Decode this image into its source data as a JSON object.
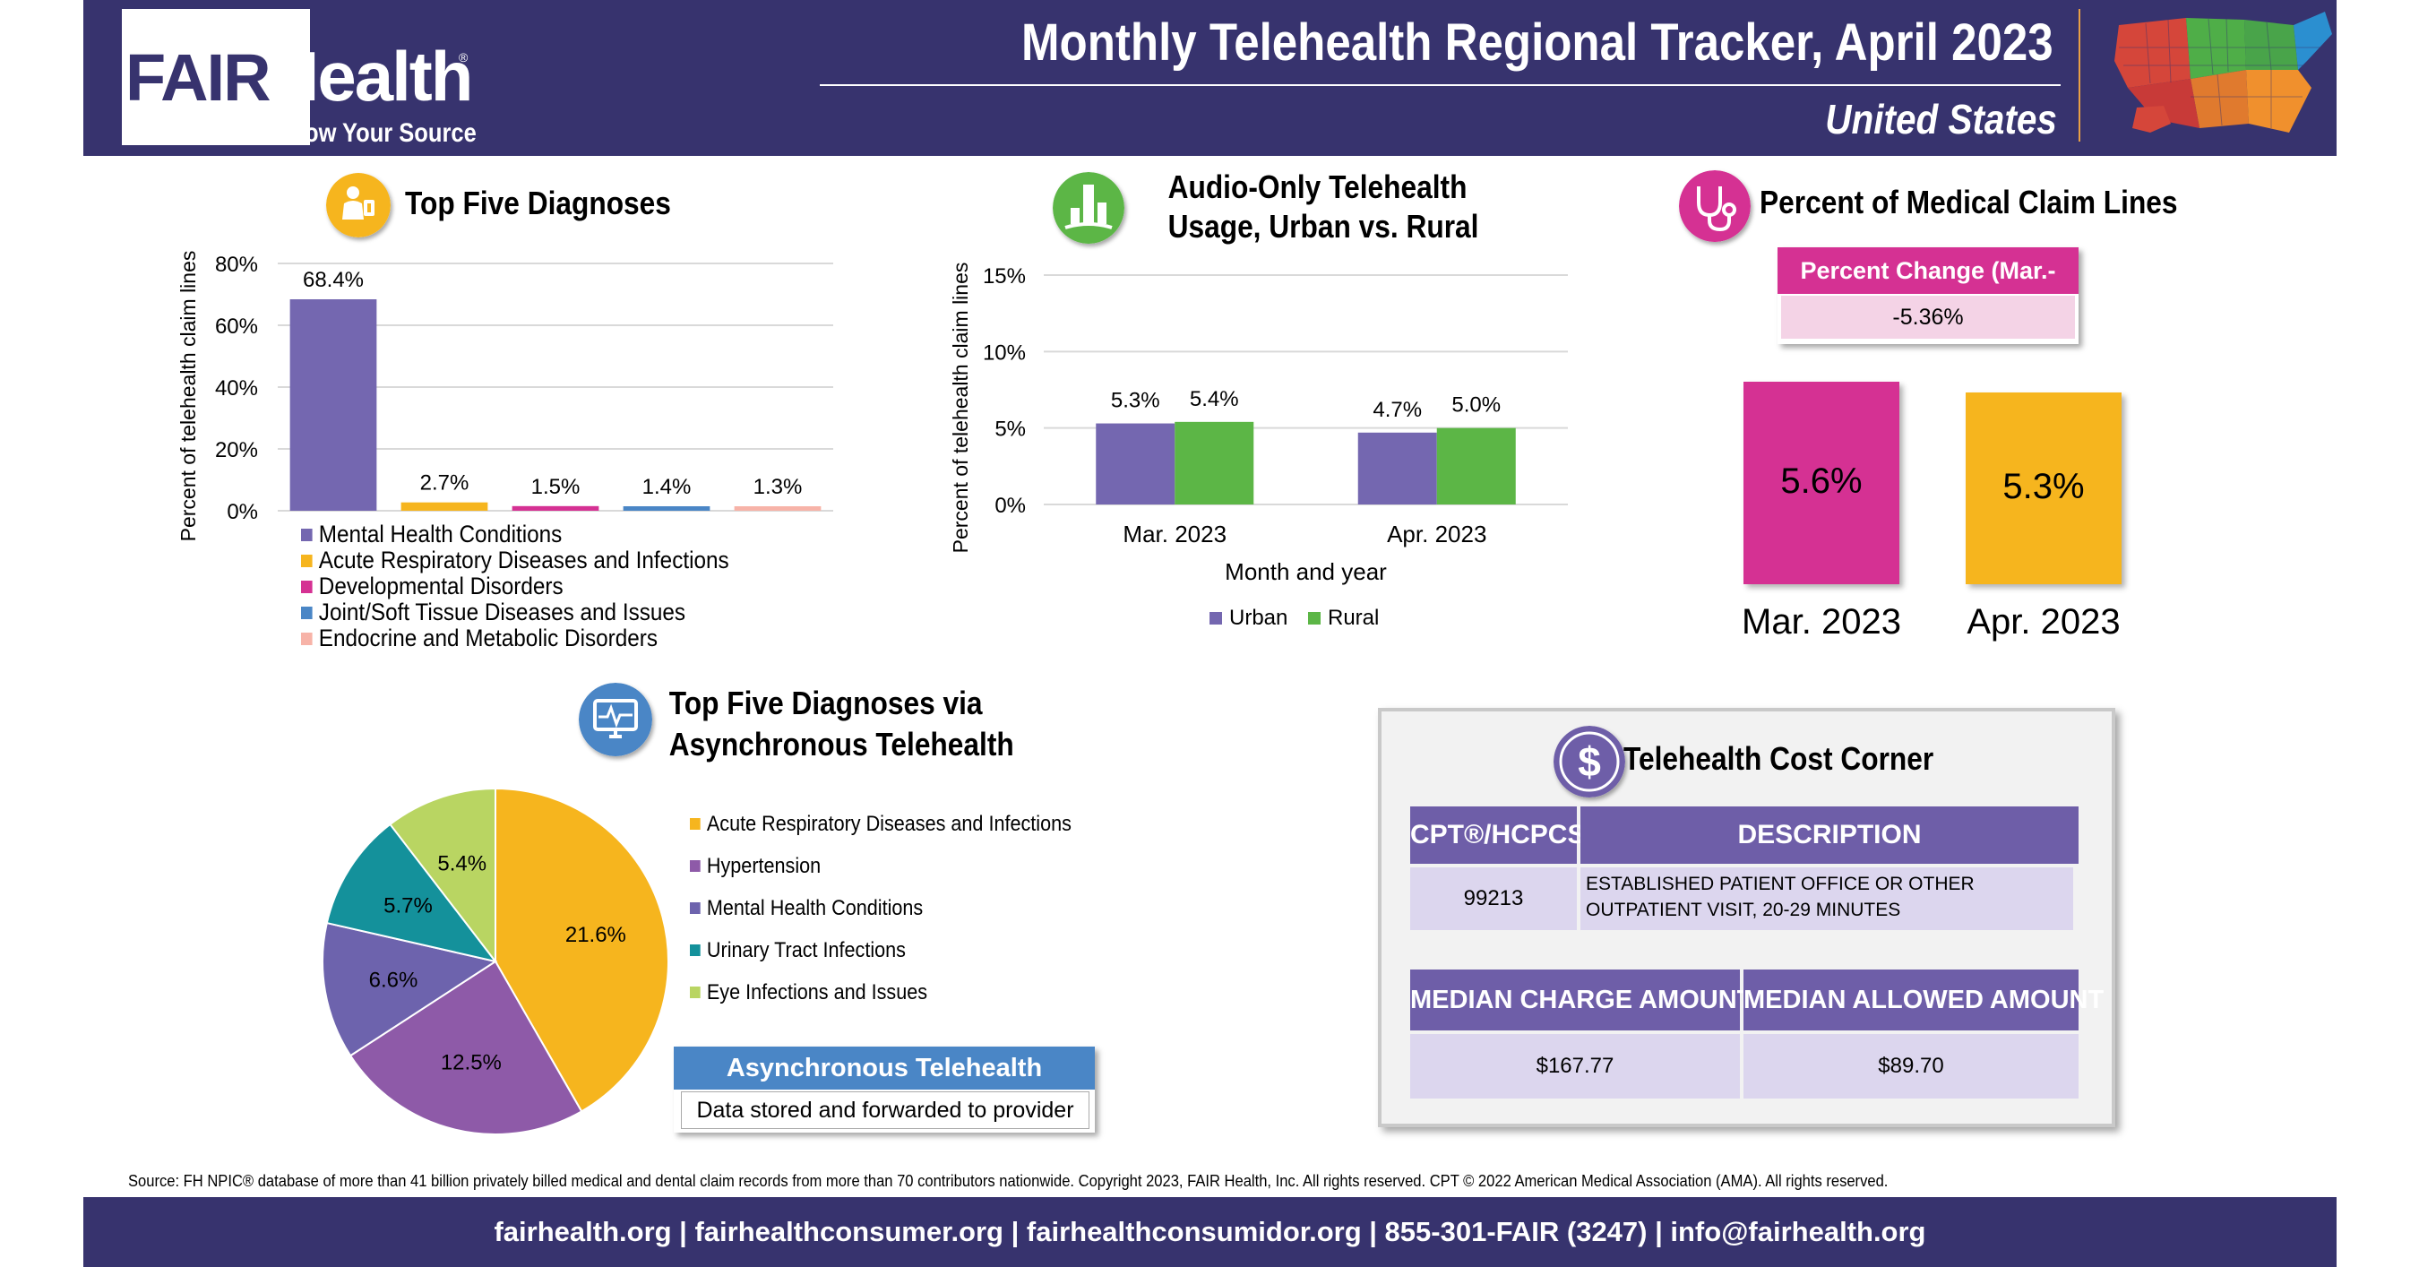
{
  "header": {
    "logo_fair": "FAIR",
    "logo_health": "Health",
    "logo_reg": "®",
    "logo_tagline": "Know Your Source",
    "title": "Monthly Telehealth Regional Tracker, April 2023",
    "subtitle": "United States"
  },
  "colors": {
    "navy": "#37336e",
    "purple": "#7467b0",
    "green": "#5cb646",
    "magenta": "#d53193",
    "gold": "#f6b51e",
    "blue": "#4a86c6"
  },
  "top_diagnoses": {
    "title": "Top Five Diagnoses",
    "icon": "doctor-icon"
  },
  "audio_only": {
    "title_line1": "Audio-Only Telehealth",
    "title_line2": "Usage, Urban vs. Rural",
    "icon": "city-icon"
  },
  "medical_claims": {
    "title": "Percent of Medical Claim Lines",
    "icon": "stethoscope-icon",
    "percent_change_label": "Percent Change (Mar.-Apr.)",
    "percent_change_value": "-5.36%"
  },
  "async": {
    "title_line1": "Top Five Diagnoses via",
    "title_line2": "Asynchronous Telehealth",
    "icon": "monitor-heart-icon",
    "box_title": "Asynchronous Telehealth",
    "box_text": "Data stored and forwarded to provider"
  },
  "cost_corner": {
    "title": "Telehealth Cost Corner",
    "icon": "dollar-icon",
    "code_header": "CPT®/HCPCS",
    "desc_header": "DESCRIPTION",
    "code": "99213",
    "description": "ESTABLISHED PATIENT OFFICE OR OTHER OUTPATIENT VISIT, 20-29 MINUTES",
    "charge_header": "MEDIAN CHARGE AMOUNT",
    "allowed_header": "MEDIAN ALLOWED AMOUNT",
    "charge_value": "$167.77",
    "allowed_value": "$89.70"
  },
  "source_note": "Source: FH NPIC® database of more than 41 billion privately billed medical and dental claim records from more than 70 contributors nationwide. Copyright 2023, FAIR Health, Inc. All rights reserved. CPT © 2022 American Medical Association (AMA). All rights reserved.",
  "footer": "fairhealth.org  |  fairhealthconsumer.org  |  fairhealthconsumidor.org  |  855-301-FAIR (3247)  |  info@fairhealth.org",
  "chart_data": [
    {
      "id": "top-five-diagnoses",
      "type": "bar",
      "title": "Top Five Diagnoses",
      "ylabel": "Percent of telehealth claim lines",
      "ylim": [
        0,
        80
      ],
      "yticks": [
        "0%",
        "20%",
        "40%",
        "60%",
        "80%"
      ],
      "grid": true,
      "legend": "bottom",
      "categories": [
        "Mental Health Conditions",
        "Acute Respiratory Diseases and Infections",
        "Developmental Disorders",
        "Joint/Soft Tissue Diseases and Issues",
        "Endocrine and Metabolic Disorders"
      ],
      "values": [
        68.4,
        2.7,
        1.5,
        1.4,
        1.3
      ],
      "labels": [
        "68.4%",
        "2.7%",
        "1.5%",
        "1.4%",
        "1.3%"
      ],
      "colors": [
        "#7467b0",
        "#f6b51e",
        "#d53193",
        "#4a86c6",
        "#f7b3a8"
      ]
    },
    {
      "id": "audio-only-urban-rural",
      "type": "bar",
      "title": "Audio-Only Telehealth Usage, Urban vs. Rural",
      "xlabel": "Month and year",
      "ylabel": "Percent of telehealth claim lines",
      "ylim": [
        0,
        15
      ],
      "yticks": [
        "0%",
        "5%",
        "10%",
        "15%"
      ],
      "grid": true,
      "legend": "bottom",
      "categories": [
        "Mar. 2023",
        "Apr. 2023"
      ],
      "series": [
        {
          "name": "Urban",
          "values": [
            5.3,
            4.7
          ],
          "labels": [
            "5.3%",
            "4.7%"
          ],
          "color": "#7467b0"
        },
        {
          "name": "Rural",
          "values": [
            5.4,
            5.0
          ],
          "labels": [
            "5.4%",
            "5.0%"
          ],
          "color": "#5cb646"
        }
      ]
    },
    {
      "id": "medical-claim-lines",
      "type": "bar",
      "title": "Percent of Medical Claim Lines",
      "categories": [
        "Mar. 2023",
        "Apr. 2023"
      ],
      "values": [
        5.6,
        5.3
      ],
      "labels": [
        "5.6%",
        "5.3%"
      ],
      "colors": [
        "#d53193",
        "#f6b51e"
      ]
    },
    {
      "id": "async-diagnoses",
      "type": "pie",
      "title": "Top Five Diagnoses via Asynchronous Telehealth",
      "legend": "right",
      "categories": [
        "Acute Respiratory Diseases and Infections",
        "Hypertension",
        "Mental Health Conditions",
        "Urinary Tract Infections",
        "Eye Infections and Issues"
      ],
      "values": [
        21.6,
        12.5,
        6.6,
        5.7,
        5.4
      ],
      "labels": [
        "21.6%",
        "12.5%",
        "6.6%",
        "5.7%",
        "5.4%"
      ],
      "colors": [
        "#f6b51e",
        "#8e5aa8",
        "#6d63ad",
        "#14919b",
        "#b9d562"
      ]
    }
  ]
}
